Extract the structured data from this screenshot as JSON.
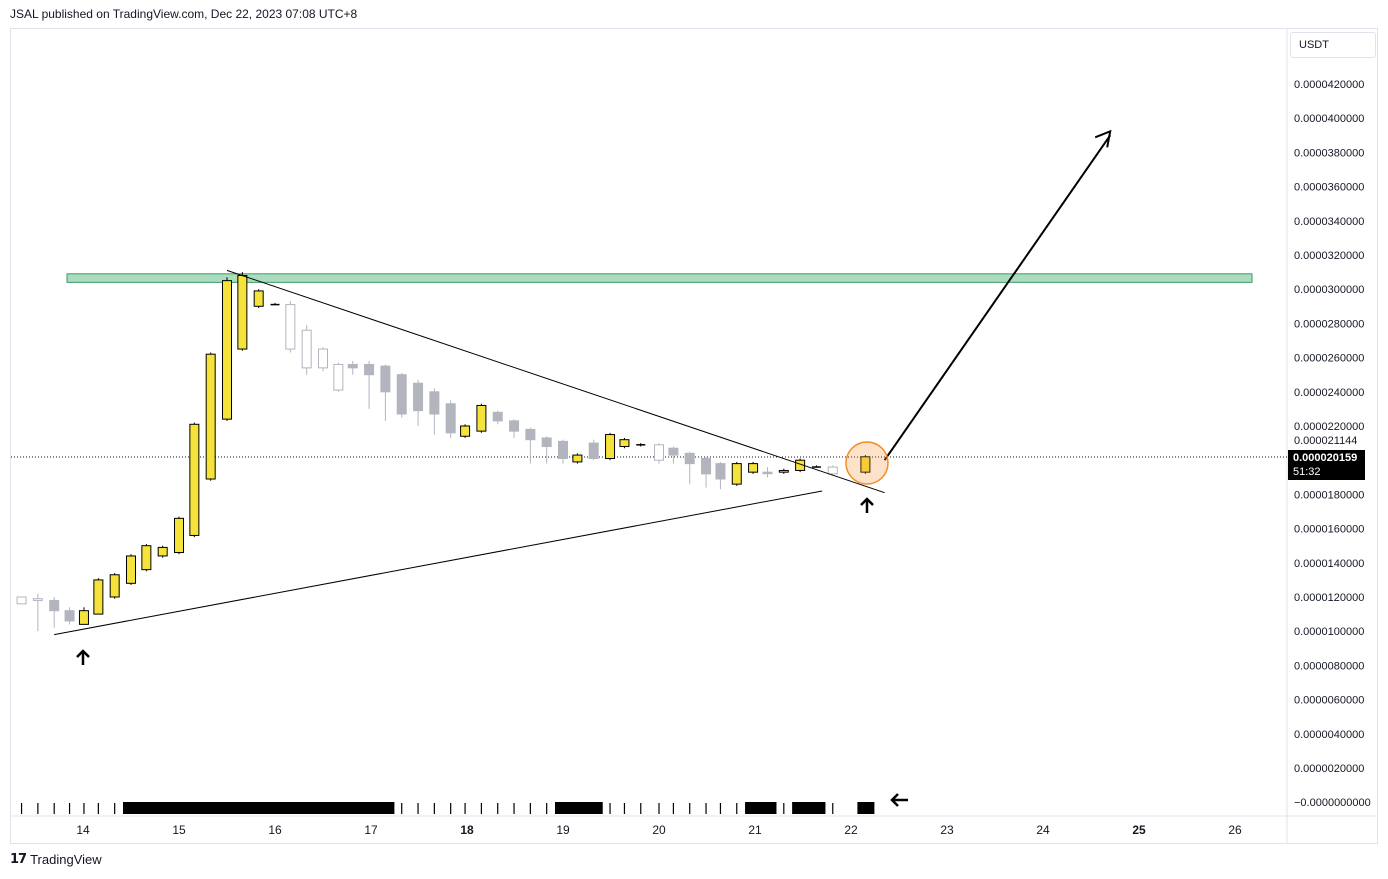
{
  "header": {
    "published_by": "JSAL published on TradingView.com, Dec 22, 2023 07:08 UTC+8"
  },
  "footer": {
    "logo": "17",
    "brand": "TradingView"
  },
  "price_axis": {
    "currency": "USDT",
    "current_price": "0.000020159",
    "countdown": "51:32",
    "marker_label": "0.000021144"
  },
  "colors": {
    "bull_candle": "#f5e33b",
    "bear_candle": "#b2b5be",
    "resistance_zone": "#66c08a",
    "drawing": "#000000",
    "highlight_circle": "#f28c28"
  },
  "chart_data": {
    "type": "candlestick",
    "x_ticks": [
      {
        "label": "14",
        "bold": false
      },
      {
        "label": "15",
        "bold": false
      },
      {
        "label": "16",
        "bold": false
      },
      {
        "label": "17",
        "bold": false
      },
      {
        "label": "18",
        "bold": true
      },
      {
        "label": "19",
        "bold": false
      },
      {
        "label": "20",
        "bold": false
      },
      {
        "label": "21",
        "bold": false
      },
      {
        "label": "22",
        "bold": false
      },
      {
        "label": "23",
        "bold": false
      },
      {
        "label": "24",
        "bold": false
      },
      {
        "label": "25",
        "bold": true
      },
      {
        "label": "26",
        "bold": false
      }
    ],
    "y_ticks": [
      "0.0000420000",
      "0.0000400000",
      "0.0000380000",
      "0.0000360000",
      "0.0000340000",
      "0.0000320000",
      "0.0000300000",
      "0.0000280000",
      "0.0000260000",
      "0.0000240000",
      "0.0000220000",
      "0.0000180000",
      "0.0000160000",
      "0.0000140000",
      "0.0000120000",
      "0.0000100000",
      "0.0000080000",
      "0.0000060000",
      "0.0000040000",
      "0.0000020000",
      "−0.0000000000"
    ],
    "ylim": [
      -0.0,
      4.3e-05
    ],
    "resistance_zone": [
      3.04e-05,
      3.09e-05
    ],
    "current_price": 2.0159e-05,
    "trendlines": [
      {
        "name": "upper-trendline",
        "from": [
          15.5,
          3.11e-05
        ],
        "to": [
          22.35,
          1.81e-05
        ]
      },
      {
        "name": "lower-trendline",
        "from": [
          13.7,
          9.8e-06
        ],
        "to": [
          21.7,
          1.82e-05
        ]
      },
      {
        "name": "projection-arrow",
        "from": [
          22.35,
          2e-05
        ],
        "to": [
          24.7,
          3.9e-05
        ]
      }
    ],
    "candles": [
      {
        "x": 13.36,
        "o": 1.2e-05,
        "c": 1.16e-05,
        "h": 1.2e-05,
        "l": 1.16e-05,
        "dir": "hollow"
      },
      {
        "x": 13.53,
        "o": 1.19e-05,
        "c": 1.18e-05,
        "h": 1.22e-05,
        "l": 1e-05,
        "dir": "hollow"
      },
      {
        "x": 13.7,
        "o": 1.18e-05,
        "c": 1.12e-05,
        "h": 1.2e-05,
        "l": 1.02e-05,
        "dir": "bear"
      },
      {
        "x": 13.86,
        "o": 1.12e-05,
        "c": 1.06e-05,
        "h": 1.14e-05,
        "l": 1.04e-05,
        "dir": "bear"
      },
      {
        "x": 14.01,
        "o": 1.04e-05,
        "c": 1.12e-05,
        "h": 1.14e-05,
        "l": 1.04e-05,
        "dir": "bull"
      },
      {
        "x": 14.16,
        "o": 1.1e-05,
        "c": 1.3e-05,
        "h": 1.31e-05,
        "l": 1.1e-05,
        "dir": "bull"
      },
      {
        "x": 14.33,
        "o": 1.2e-05,
        "c": 1.33e-05,
        "h": 1.34e-05,
        "l": 1.19e-05,
        "dir": "bull"
      },
      {
        "x": 14.5,
        "o": 1.28e-05,
        "c": 1.44e-05,
        "h": 1.45e-05,
        "l": 1.27e-05,
        "dir": "bull"
      },
      {
        "x": 14.66,
        "o": 1.36e-05,
        "c": 1.5e-05,
        "h": 1.51e-05,
        "l": 1.35e-05,
        "dir": "bull"
      },
      {
        "x": 14.83,
        "o": 1.44e-05,
        "c": 1.49e-05,
        "h": 1.5e-05,
        "l": 1.43e-05,
        "dir": "bull"
      },
      {
        "x": 15.0,
        "o": 1.46e-05,
        "c": 1.66e-05,
        "h": 1.67e-05,
        "l": 1.45e-05,
        "dir": "bull"
      },
      {
        "x": 15.16,
        "o": 1.56e-05,
        "c": 2.21e-05,
        "h": 2.22e-05,
        "l": 1.55e-05,
        "dir": "bull"
      },
      {
        "x": 15.33,
        "o": 1.89e-05,
        "c": 2.62e-05,
        "h": 2.63e-05,
        "l": 1.88e-05,
        "dir": "bull"
      },
      {
        "x": 15.5,
        "o": 2.24e-05,
        "c": 3.05e-05,
        "h": 3.07e-05,
        "l": 2.23e-05,
        "dir": "bull"
      },
      {
        "x": 15.66,
        "o": 2.65e-05,
        "c": 3.08e-05,
        "h": 3.1e-05,
        "l": 2.64e-05,
        "dir": "bull"
      },
      {
        "x": 15.83,
        "o": 2.9e-05,
        "c": 2.99e-05,
        "h": 3e-05,
        "l": 2.89e-05,
        "dir": "bull"
      },
      {
        "x": 16.0,
        "o": 2.91e-05,
        "c": 2.91e-05,
        "h": 2.92e-05,
        "l": 2.91e-05,
        "dir": "doji"
      },
      {
        "x": 16.16,
        "o": 2.91e-05,
        "c": 2.65e-05,
        "h": 2.93e-05,
        "l": 2.63e-05,
        "dir": "hollow"
      },
      {
        "x": 16.33,
        "o": 2.76e-05,
        "c": 2.54e-05,
        "h": 2.79e-05,
        "l": 2.5e-05,
        "dir": "hollow"
      },
      {
        "x": 16.5,
        "o": 2.65e-05,
        "c": 2.54e-05,
        "h": 2.66e-05,
        "l": 2.52e-05,
        "dir": "hollow"
      },
      {
        "x": 16.66,
        "o": 2.56e-05,
        "c": 2.41e-05,
        "h": 2.57e-05,
        "l": 2.4e-05,
        "dir": "hollow"
      },
      {
        "x": 16.81,
        "o": 2.56e-05,
        "c": 2.54e-05,
        "h": 2.58e-05,
        "l": 2.5e-05,
        "dir": "bear"
      },
      {
        "x": 16.98,
        "o": 2.56e-05,
        "c": 2.5e-05,
        "h": 2.58e-05,
        "l": 2.3e-05,
        "dir": "bear"
      },
      {
        "x": 17.15,
        "o": 2.55e-05,
        "c": 2.4e-05,
        "h": 2.56e-05,
        "l": 2.23e-05,
        "dir": "bear"
      },
      {
        "x": 17.32,
        "o": 2.5e-05,
        "c": 2.27e-05,
        "h": 2.51e-05,
        "l": 2.25e-05,
        "dir": "bear"
      },
      {
        "x": 17.49,
        "o": 2.45e-05,
        "c": 2.29e-05,
        "h": 2.47e-05,
        "l": 2.2e-05,
        "dir": "bear"
      },
      {
        "x": 17.66,
        "o": 2.4e-05,
        "c": 2.27e-05,
        "h": 2.42e-05,
        "l": 2.15e-05,
        "dir": "bear"
      },
      {
        "x": 17.83,
        "o": 2.33e-05,
        "c": 2.16e-05,
        "h": 2.35e-05,
        "l": 2.13e-05,
        "dir": "bear"
      },
      {
        "x": 17.98,
        "o": 2.14e-05,
        "c": 2.2e-05,
        "h": 2.21e-05,
        "l": 2.13e-05,
        "dir": "bull"
      },
      {
        "x": 18.15,
        "o": 2.17e-05,
        "c": 2.32e-05,
        "h": 2.33e-05,
        "l": 2.16e-05,
        "dir": "bull"
      },
      {
        "x": 18.32,
        "o": 2.28e-05,
        "c": 2.23e-05,
        "h": 2.29e-05,
        "l": 2.21e-05,
        "dir": "bear"
      },
      {
        "x": 18.49,
        "o": 2.23e-05,
        "c": 2.17e-05,
        "h": 2.24e-05,
        "l": 2.13e-05,
        "dir": "bear"
      },
      {
        "x": 18.66,
        "o": 2.18e-05,
        "c": 2.12e-05,
        "h": 2.19e-05,
        "l": 1.98e-05,
        "dir": "bear"
      },
      {
        "x": 18.83,
        "o": 2.13e-05,
        "c": 2.08e-05,
        "h": 2.14e-05,
        "l": 1.98e-05,
        "dir": "bear"
      },
      {
        "x": 19.0,
        "o": 2.11e-05,
        "c": 2.01e-05,
        "h": 2.12e-05,
        "l": 1.98e-05,
        "dir": "bear"
      },
      {
        "x": 19.15,
        "o": 1.99e-05,
        "c": 2.03e-05,
        "h": 2.04e-05,
        "l": 1.98e-05,
        "dir": "bull"
      },
      {
        "x": 19.32,
        "o": 2.1e-05,
        "c": 2.01e-05,
        "h": 2.12e-05,
        "l": 2e-05,
        "dir": "bear"
      },
      {
        "x": 19.49,
        "o": 2.01e-05,
        "c": 2.15e-05,
        "h": 2.16e-05,
        "l": 2e-05,
        "dir": "bull"
      },
      {
        "x": 19.64,
        "o": 2.08e-05,
        "c": 2.12e-05,
        "h": 2.13e-05,
        "l": 2.07e-05,
        "dir": "bull"
      },
      {
        "x": 19.81,
        "o": 2.09e-05,
        "c": 2.09e-05,
        "h": 2.1e-05,
        "l": 2.08e-05,
        "dir": "doji"
      },
      {
        "x": 20.0,
        "o": 2.09e-05,
        "c": 2e-05,
        "h": 2.1e-05,
        "l": 1.98e-05,
        "dir": "hollow"
      },
      {
        "x": 20.15,
        "o": 2.07e-05,
        "c": 2.03e-05,
        "h": 2.08e-05,
        "l": 1.98e-05,
        "dir": "bear"
      },
      {
        "x": 20.32,
        "o": 2.04e-05,
        "c": 1.98e-05,
        "h": 2.05e-05,
        "l": 1.86e-05,
        "dir": "bear"
      },
      {
        "x": 20.49,
        "o": 2.01e-05,
        "c": 1.92e-05,
        "h": 2.02e-05,
        "l": 1.84e-05,
        "dir": "bear"
      },
      {
        "x": 20.64,
        "o": 1.98e-05,
        "c": 1.89e-05,
        "h": 1.99e-05,
        "l": 1.83e-05,
        "dir": "bear"
      },
      {
        "x": 20.81,
        "o": 1.86e-05,
        "c": 1.98e-05,
        "h": 1.99e-05,
        "l": 1.85e-05,
        "dir": "bull"
      },
      {
        "x": 20.98,
        "o": 1.93e-05,
        "c": 1.98e-05,
        "h": 1.99e-05,
        "l": 1.92e-05,
        "dir": "bull"
      },
      {
        "x": 21.13,
        "o": 1.93e-05,
        "c": 1.93e-05,
        "h": 1.96e-05,
        "l": 1.9e-05,
        "dir": "bear"
      },
      {
        "x": 21.3,
        "o": 1.93e-05,
        "c": 1.94e-05,
        "h": 1.95e-05,
        "l": 1.92e-05,
        "dir": "bull"
      },
      {
        "x": 21.47,
        "o": 1.94e-05,
        "c": 2e-05,
        "h": 2.01e-05,
        "l": 1.93e-05,
        "dir": "bull"
      },
      {
        "x": 21.64,
        "o": 1.96e-05,
        "c": 1.96e-05,
        "h": 1.97e-05,
        "l": 1.96e-05,
        "dir": "doji"
      },
      {
        "x": 21.81,
        "o": 1.96e-05,
        "c": 1.92e-05,
        "h": 1.97e-05,
        "l": 1.91e-05,
        "dir": "hollow"
      },
      {
        "x": 22.15,
        "o": 1.93e-05,
        "c": 2.02e-05,
        "h": 2.03e-05,
        "l": 1.92e-05,
        "dir": "bull"
      }
    ],
    "volume": [
      {
        "x": 13.36,
        "v": 0.35,
        "dir": "hollow"
      },
      {
        "x": 13.53,
        "v": 0.35,
        "dir": "hollow"
      },
      {
        "x": 13.7,
        "v": 0.35,
        "dir": "hollow"
      },
      {
        "x": 13.86,
        "v": 0.35,
        "dir": "hollow"
      },
      {
        "x": 14.01,
        "v": 0.35,
        "dir": "hollow"
      },
      {
        "x": 14.16,
        "v": 0.35,
        "dir": "hollow"
      },
      {
        "x": 14.33,
        "v": 0.35,
        "dir": "hollow"
      },
      {
        "x": 14.5,
        "v": 1,
        "dir": "solid"
      },
      {
        "x": 14.66,
        "v": 1,
        "dir": "solid"
      },
      {
        "x": 14.83,
        "v": 1,
        "dir": "solid"
      },
      {
        "x": 15.0,
        "v": 1,
        "dir": "solid"
      },
      {
        "x": 15.16,
        "v": 1,
        "dir": "solid"
      },
      {
        "x": 15.33,
        "v": 1,
        "dir": "solid"
      },
      {
        "x": 15.5,
        "v": 1,
        "dir": "solid"
      },
      {
        "x": 15.66,
        "v": 1,
        "dir": "solid"
      },
      {
        "x": 15.83,
        "v": 1,
        "dir": "solid"
      },
      {
        "x": 16.0,
        "v": 1,
        "dir": "solid"
      },
      {
        "x": 16.16,
        "v": 1,
        "dir": "solid"
      },
      {
        "x": 16.33,
        "v": 1,
        "dir": "solid"
      },
      {
        "x": 16.5,
        "v": 1,
        "dir": "solid"
      },
      {
        "x": 16.66,
        "v": 1,
        "dir": "solid"
      },
      {
        "x": 16.81,
        "v": 1,
        "dir": "solid"
      },
      {
        "x": 16.98,
        "v": 1,
        "dir": "solid"
      },
      {
        "x": 17.15,
        "v": 1,
        "dir": "solid"
      },
      {
        "x": 17.32,
        "v": 0.35,
        "dir": "hollow"
      },
      {
        "x": 17.49,
        "v": 0.35,
        "dir": "hollow"
      },
      {
        "x": 17.66,
        "v": 0.35,
        "dir": "hollow"
      },
      {
        "x": 17.83,
        "v": 0.35,
        "dir": "hollow"
      },
      {
        "x": 17.98,
        "v": 0.35,
        "dir": "hollow"
      },
      {
        "x": 18.15,
        "v": 0.35,
        "dir": "hollow"
      },
      {
        "x": 18.32,
        "v": 0.35,
        "dir": "hollow"
      },
      {
        "x": 18.49,
        "v": 0.35,
        "dir": "hollow"
      },
      {
        "x": 18.66,
        "v": 0.35,
        "dir": "hollow"
      },
      {
        "x": 18.83,
        "v": 0.35,
        "dir": "hollow"
      },
      {
        "x": 19.0,
        "v": 1,
        "dir": "solid"
      },
      {
        "x": 19.15,
        "v": 1,
        "dir": "solid"
      },
      {
        "x": 19.32,
        "v": 1,
        "dir": "solid"
      },
      {
        "x": 19.49,
        "v": 0.35,
        "dir": "hollow"
      },
      {
        "x": 19.64,
        "v": 0.35,
        "dir": "hollow"
      },
      {
        "x": 19.81,
        "v": 0.35,
        "dir": "hollow"
      },
      {
        "x": 20.0,
        "v": 0.35,
        "dir": "hollow"
      },
      {
        "x": 20.15,
        "v": 0.35,
        "dir": "hollow"
      },
      {
        "x": 20.32,
        "v": 0.35,
        "dir": "hollow"
      },
      {
        "x": 20.49,
        "v": 0.35,
        "dir": "hollow"
      },
      {
        "x": 20.64,
        "v": 0.35,
        "dir": "hollow"
      },
      {
        "x": 20.81,
        "v": 0.35,
        "dir": "hollow"
      },
      {
        "x": 20.98,
        "v": 1,
        "dir": "solid"
      },
      {
        "x": 21.13,
        "v": 1,
        "dir": "solid"
      },
      {
        "x": 21.3,
        "v": 0.35,
        "dir": "hollow"
      },
      {
        "x": 21.47,
        "v": 1,
        "dir": "solid"
      },
      {
        "x": 21.64,
        "v": 1,
        "dir": "solid"
      },
      {
        "x": 21.81,
        "v": 0.35,
        "dir": "hollow"
      },
      {
        "x": 22.15,
        "v": 1,
        "dir": "solid"
      }
    ]
  }
}
